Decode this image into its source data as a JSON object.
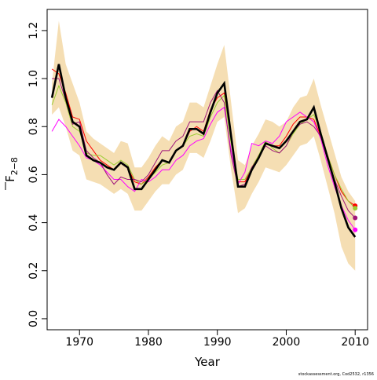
{
  "chart_data": {
    "type": "line",
    "xlabel": "Year",
    "ylabel": "F",
    "ylabel_subscript": "2−8",
    "footer": "stockassessment.org, Cod2532, r1356",
    "xlim": [
      1965.3,
      2011.8
    ],
    "xticks": [
      1970,
      1980,
      1990,
      2000,
      2010
    ],
    "ylim": [
      -0.046,
      1.288
    ],
    "yticks": [
      {
        "value": 0,
        "label": "0.0"
      },
      0.2,
      0.4,
      0.6,
      0.8,
      {
        "value": 1,
        "label": "1.0"
      },
      1.2
    ],
    "x": [
      1966,
      1967,
      1968,
      1969,
      1970,
      1971,
      1972,
      1973,
      1974,
      1975,
      1976,
      1977,
      1978,
      1979,
      1980,
      1981,
      1982,
      1983,
      1984,
      1985,
      1986,
      1987,
      1988,
      1989,
      1990,
      1991,
      1992,
      1993,
      1994,
      1995,
      1996,
      1997,
      1998,
      1999,
      2000,
      2001,
      2002,
      2003,
      2004,
      2005,
      2006,
      2007,
      2008,
      2009,
      2010
    ],
    "band": {
      "color": "#f5deb3",
      "upper": [
        0.98,
        1.24,
        1.06,
        0.98,
        0.9,
        0.78,
        0.75,
        0.73,
        0.71,
        0.69,
        0.74,
        0.73,
        0.63,
        0.63,
        0.67,
        0.72,
        0.76,
        0.74,
        0.8,
        0.82,
        0.9,
        0.9,
        0.88,
        0.97,
        1.06,
        1.14,
        0.9,
        0.66,
        0.64,
        0.72,
        0.77,
        0.83,
        0.82,
        0.8,
        0.82,
        0.88,
        0.92,
        0.93,
        1.0,
        0.89,
        0.79,
        0.69,
        0.59,
        0.53,
        0.49
      ],
      "lower": [
        0.85,
        0.88,
        0.8,
        0.7,
        0.68,
        0.58,
        0.57,
        0.56,
        0.54,
        0.52,
        0.54,
        0.52,
        0.45,
        0.45,
        0.49,
        0.53,
        0.56,
        0.56,
        0.6,
        0.62,
        0.69,
        0.69,
        0.67,
        0.74,
        0.82,
        0.84,
        0.62,
        0.44,
        0.46,
        0.52,
        0.57,
        0.63,
        0.62,
        0.61,
        0.64,
        0.68,
        0.72,
        0.73,
        0.76,
        0.66,
        0.55,
        0.44,
        0.3,
        0.23,
        0.2
      ]
    },
    "series": [
      {
        "color": "#ff0000",
        "values": [
          1.04,
          1.02,
          0.94,
          0.84,
          0.83,
          0.74,
          0.7,
          0.66,
          0.64,
          0.62,
          0.65,
          0.63,
          0.57,
          0.56,
          0.59,
          0.63,
          0.66,
          0.65,
          0.7,
          0.72,
          0.78,
          0.8,
          0.78,
          0.87,
          0.92,
          0.94,
          0.74,
          0.57,
          0.57,
          0.63,
          0.68,
          0.73,
          0.72,
          0.72,
          0.76,
          0.81,
          0.84,
          0.84,
          0.83,
          0.76,
          0.68,
          0.6,
          0.53,
          0.49,
          0.47
        ]
      },
      {
        "color": "#9acd32",
        "values": [
          0.89,
          0.97,
          0.9,
          0.8,
          0.78,
          0.69,
          0.68,
          0.68,
          0.66,
          0.64,
          0.66,
          0.64,
          0.58,
          0.56,
          0.58,
          0.61,
          0.64,
          0.65,
          0.7,
          0.72,
          0.76,
          0.77,
          0.76,
          0.84,
          0.9,
          0.93,
          0.73,
          0.58,
          0.58,
          0.63,
          0.68,
          0.74,
          0.71,
          0.69,
          0.72,
          0.77,
          0.81,
          0.83,
          0.85,
          0.78,
          0.68,
          0.6,
          0.54,
          0.49,
          0.46
        ]
      },
      {
        "color": "#ff00ff",
        "values": [
          0.78,
          0.83,
          0.8,
          0.76,
          0.72,
          0.67,
          0.66,
          0.64,
          0.61,
          0.58,
          0.58,
          0.55,
          0.53,
          0.58,
          0.57,
          0.59,
          0.62,
          0.62,
          0.66,
          0.68,
          0.72,
          0.74,
          0.75,
          0.81,
          0.86,
          0.88,
          0.7,
          0.56,
          0.61,
          0.73,
          0.72,
          0.74,
          0.73,
          0.76,
          0.82,
          0.84,
          0.86,
          0.84,
          0.82,
          0.75,
          0.64,
          0.55,
          0.47,
          0.41,
          0.37
        ]
      },
      {
        "color": "#a0167a",
        "values": [
          1.0,
          1.0,
          0.91,
          0.81,
          0.82,
          0.7,
          0.67,
          0.65,
          0.6,
          0.56,
          0.59,
          0.58,
          0.58,
          0.57,
          0.6,
          0.65,
          0.7,
          0.7,
          0.74,
          0.76,
          0.82,
          0.82,
          0.82,
          0.9,
          0.95,
          0.9,
          0.68,
          0.55,
          0.56,
          0.63,
          0.67,
          0.72,
          0.7,
          0.69,
          0.72,
          0.78,
          0.81,
          0.82,
          0.8,
          0.76,
          0.66,
          0.58,
          0.51,
          0.45,
          0.42
        ]
      },
      {
        "color": "#000000",
        "main": true,
        "values": [
          0.92,
          1.06,
          0.92,
          0.82,
          0.8,
          0.68,
          0.66,
          0.65,
          0.63,
          0.62,
          0.65,
          0.63,
          0.54,
          0.54,
          0.58,
          0.62,
          0.66,
          0.65,
          0.7,
          0.72,
          0.79,
          0.79,
          0.77,
          0.86,
          0.94,
          0.98,
          0.76,
          0.55,
          0.55,
          0.62,
          0.67,
          0.73,
          0.72,
          0.71,
          0.74,
          0.78,
          0.82,
          0.83,
          0.88,
          0.77,
          0.67,
          0.57,
          0.46,
          0.38,
          0.34
        ]
      }
    ]
  }
}
